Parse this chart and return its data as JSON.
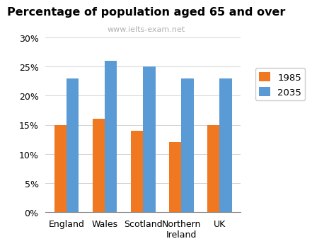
{
  "title": "Percentage of population aged 65 and over",
  "subtitle": "www.ielts-exam.net",
  "categories": [
    "England",
    "Wales",
    "Scotland",
    "Northern\nIreland",
    "UK"
  ],
  "values_1985": [
    15,
    16,
    14,
    12,
    15
  ],
  "values_2035": [
    23,
    26,
    25,
    23,
    23
  ],
  "color_1985": "#f07820",
  "color_2035": "#5b9bd5",
  "legend_labels": [
    "1985",
    "2035"
  ],
  "ylim": [
    0,
    30
  ],
  "yticks": [
    0,
    5,
    10,
    15,
    20,
    25,
    30
  ],
  "bar_width": 0.32,
  "title_fontsize": 11.5,
  "subtitle_fontsize": 8,
  "subtitle_color": "#b0b0b0",
  "tick_label_fontsize": 9,
  "legend_fontsize": 9.5
}
